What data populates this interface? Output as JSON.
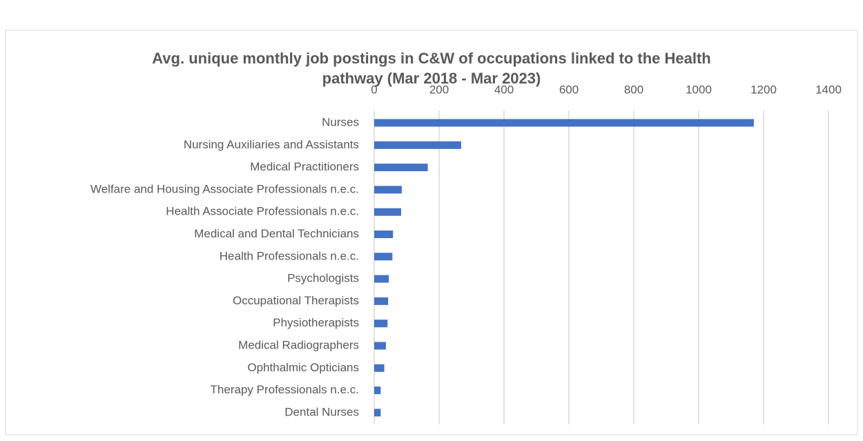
{
  "chart_data": {
    "type": "bar",
    "orientation": "horizontal",
    "title": "Avg. unique monthly job postings in C&W of occupations linked to the Health pathway (Mar 2018 - Mar 2023)",
    "categories": [
      "Nurses",
      "Nursing Auxiliaries and Assistants",
      "Medical Practitioners",
      "Welfare and Housing Associate Professionals n.e.c.",
      "Health Associate Professionals n.e.c.",
      "Medical and Dental Technicians",
      "Health Professionals n.e.c.",
      "Psychologists",
      "Occupational Therapists",
      "Physiotherapists",
      "Medical Radiographers",
      "Ophthalmic Opticians",
      "Therapy Professionals n.e.c.",
      "Dental Nurses"
    ],
    "values": [
      1170,
      268,
      165,
      85,
      83,
      58,
      56,
      45,
      43,
      41,
      36,
      31,
      20,
      20
    ],
    "color": "#4472c4",
    "xlim": [
      0,
      1400
    ],
    "xticks": [
      0,
      200,
      400,
      600,
      800,
      1000,
      1200,
      1400
    ],
    "grid": true
  }
}
